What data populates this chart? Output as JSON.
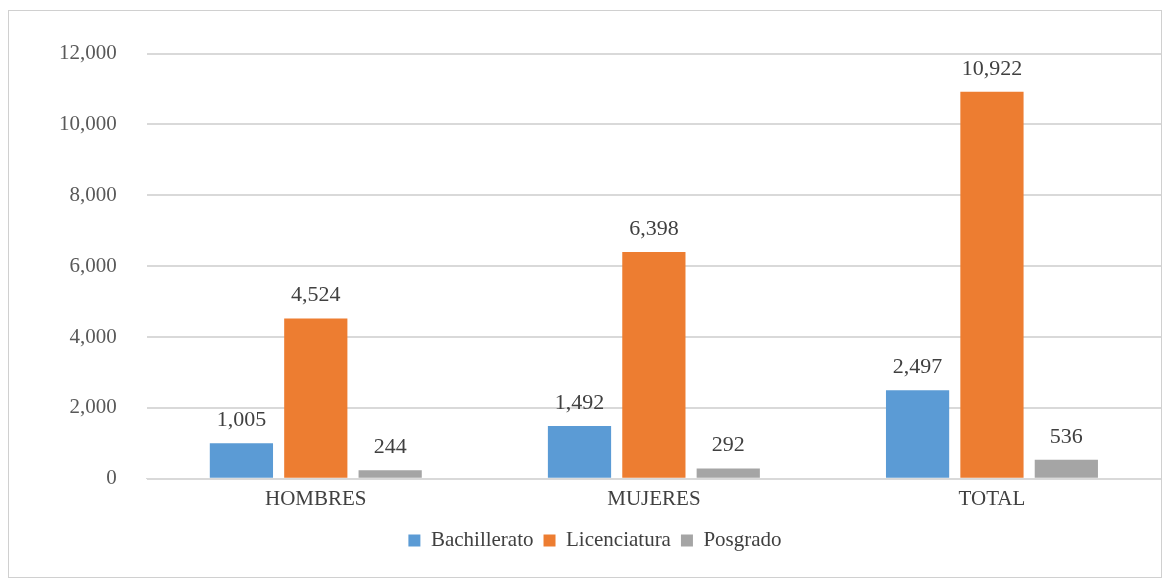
{
  "chart_data": {
    "type": "bar",
    "categories": [
      "HOMBRES",
      "MUJERES",
      "TOTAL"
    ],
    "series": [
      {
        "name": "Bachillerato",
        "color": "#5b9bd5",
        "values": [
          1005,
          1492,
          2497
        ],
        "value_labels": [
          "1,005",
          "1,492",
          "2,497"
        ]
      },
      {
        "name": "Licenciatura",
        "color": "#ed7d31",
        "values": [
          4524,
          6398,
          10922
        ],
        "value_labels": [
          "4,524",
          "6,398",
          "10,922"
        ]
      },
      {
        "name": "Posgrado",
        "color": "#a5a5a5",
        "values": [
          244,
          292,
          536
        ],
        "value_labels": [
          "244",
          "292",
          "536"
        ]
      }
    ],
    "ylim": [
      0,
      12000
    ],
    "yticks": [
      {
        "value": 0,
        "label": "0"
      },
      {
        "value": 2000,
        "label": "2,000"
      },
      {
        "value": 4000,
        "label": "4,000"
      },
      {
        "value": 6000,
        "label": "6,000"
      },
      {
        "value": 8000,
        "label": "8,000"
      },
      {
        "value": 10000,
        "label": "10,000"
      },
      {
        "value": 12000,
        "label": "12,000"
      }
    ],
    "grid": "y",
    "legend": "bottom"
  }
}
